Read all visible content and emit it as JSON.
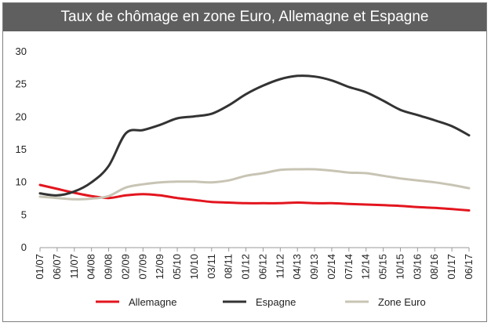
{
  "chart_data": {
    "type": "line",
    "title": "Taux de chômage en zone Euro, Allemagne et Espagne",
    "xlabel": "",
    "ylabel": "",
    "ylim": [
      0,
      30
    ],
    "yticks": [
      0,
      5,
      10,
      15,
      20,
      25,
      30
    ],
    "grid": false,
    "legend_position": "bottom",
    "categories": [
      "01/07",
      "06/07",
      "11/07",
      "04/08",
      "09/08",
      "02/09",
      "07/09",
      "12/09",
      "05/10",
      "10/10",
      "03/11",
      "08/11",
      "01/12",
      "06/12",
      "11/12",
      "04/13",
      "09/13",
      "02/14",
      "07/14",
      "12/14",
      "05/15",
      "10/15",
      "03/16",
      "08/16",
      "01/17",
      "06/17"
    ],
    "series": [
      {
        "name": "Allemagne",
        "color": "#e3151e",
        "values": [
          9.6,
          9.0,
          8.4,
          7.9,
          7.6,
          8.0,
          8.2,
          8.0,
          7.6,
          7.3,
          7.0,
          6.9,
          6.8,
          6.8,
          6.8,
          6.9,
          6.8,
          6.8,
          6.7,
          6.6,
          6.5,
          6.4,
          6.2,
          6.1,
          5.9,
          5.7
        ]
      },
      {
        "name": "Espagne",
        "color": "#333333",
        "values": [
          8.3,
          8.0,
          8.6,
          10.0,
          12.5,
          17.5,
          18.0,
          18.8,
          19.8,
          20.1,
          20.5,
          21.8,
          23.5,
          24.8,
          25.8,
          26.3,
          26.2,
          25.6,
          24.6,
          23.8,
          22.5,
          21.1,
          20.3,
          19.5,
          18.6,
          17.2
        ]
      },
      {
        "name": "Zone Euro",
        "color": "#c8c4b4",
        "values": [
          7.8,
          7.6,
          7.4,
          7.5,
          7.9,
          9.2,
          9.7,
          10.0,
          10.1,
          10.1,
          10.0,
          10.3,
          11.0,
          11.4,
          11.9,
          12.0,
          12.0,
          11.8,
          11.5,
          11.4,
          11.0,
          10.6,
          10.3,
          10.0,
          9.6,
          9.1
        ]
      }
    ]
  }
}
